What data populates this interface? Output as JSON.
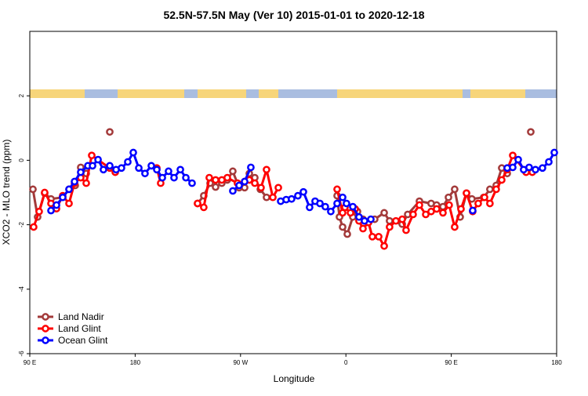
{
  "chart_data": {
    "type": "line",
    "title": "52.5N-57.5N May (Ver 10)   2015-01-01 to 2020-12-18",
    "x_label": "Longitude",
    "y_label": "XCO2 - MLO trend (ppm)",
    "xlim": [
      90,
      540
    ],
    "xticks": [
      {
        "value": 90,
        "label": "90 E"
      },
      180,
      {
        "value": 270,
        "label": "90 W"
      },
      {
        "value": 360,
        "label": "0"
      },
      {
        "value": 450,
        "label": "90 E"
      },
      {
        "value": 540,
        "label": "180"
      }
    ],
    "ylim": [
      -6,
      4
    ],
    "yticks": [
      2,
      0,
      -2,
      -4,
      -6
    ],
    "legend": "lower left",
    "series": [
      {
        "name": "Land Nadir",
        "color": "#a33a3a",
        "x": [
          92.7,
          96.7,
          102.7,
          108.1,
          118.1,
          123.5,
          128.8,
          133.5,
          138.2,
          null,
          158.3,
          null,
          233.3,
          238.6,
          244,
          248.7,
          254,
          258.7,
          263.4,
          268.8,
          273.5,
          277.5,
          282.2,
          286.9,
          292.2,
          null,
          352.5,
          354.5,
          357.2,
          361.2,
          365.9,
          369.9,
          374.6,
          379.3,
          384.6,
          392.7,
          397.3,
          408.1,
          412.8,
          422.8,
          432.8,
          437.5,
          442.9,
          447.6,
          452.9,
          457.6,
          463,
          467.6,
          477.7,
          483,
          488.4,
          493.1,
          497.8,
          null,
          517.9
        ],
        "values": [
          -0.9,
          -1.76,
          -1.02,
          -1.2,
          -1.15,
          -0.9,
          -0.78,
          -0.22,
          -0.41,
          null,
          0.88,
          null,
          -1.34,
          -1.1,
          -0.71,
          -0.83,
          -0.71,
          -0.61,
          -0.34,
          -0.85,
          -0.85,
          -0.41,
          -0.54,
          -0.9,
          -1.15,
          null,
          -1.1,
          -1.76,
          -2.07,
          -2.29,
          -1.76,
          -1.59,
          -1.83,
          -1.93,
          -1.83,
          -1.63,
          -1.88,
          -1.98,
          -1.68,
          -1.27,
          -1.34,
          -1.39,
          -1.44,
          -1.15,
          -0.9,
          -1.76,
          -1.02,
          -1.2,
          -1.15,
          -0.9,
          -0.78,
          -0.24,
          -0.41,
          null,
          0.88
        ]
      },
      {
        "name": "Land Glint",
        "color": "#ff0000",
        "x": [
          93.3,
          98,
          102.7,
          108.1,
          112.8,
          118.1,
          123.5,
          128.2,
          133.5,
          138.2,
          142.9,
          158.3,
          163,
          null,
          198.5,
          201.8,
          null,
          233.3,
          238.6,
          243.3,
          248.7,
          254,
          258.7,
          267.4,
          273.5,
          277.5,
          282.2,
          287.5,
          292.2,
          297.6,
          302.3,
          null,
          352.5,
          357.2,
          359.2,
          363.9,
          367.9,
          371.2,
          374.6,
          379.3,
          382.6,
          388,
          392.7,
          397.3,
          402.7,
          408.1,
          411.4,
          417.4,
          422.8,
          428.2,
          432.8,
          437.5,
          442.9,
          448.2,
          452.9,
          458.3,
          463,
          468.3,
          473,
          478.4,
          483,
          488.4,
          493.1,
          497.8,
          502.5,
          513.9,
          519.2
        ],
        "values": [
          -2.07,
          -1.59,
          -1.0,
          -1.34,
          -1.5,
          -1.1,
          -1.34,
          -0.71,
          -0.54,
          -0.71,
          0.15,
          -0.24,
          -0.37,
          null,
          -0.24,
          -0.71,
          null,
          -1.34,
          -1.46,
          -0.54,
          -0.61,
          -0.61,
          -0.54,
          -0.71,
          -0.66,
          -0.61,
          -0.71,
          -0.85,
          -0.29,
          -1.15,
          -0.85,
          null,
          -0.9,
          -1.63,
          -1.46,
          -1.63,
          -1.51,
          -1.88,
          -2.12,
          -1.93,
          -2.37,
          -2.37,
          -2.66,
          -2.07,
          -1.88,
          -1.83,
          -2.17,
          -1.68,
          -1.39,
          -1.68,
          -1.59,
          -1.51,
          -1.63,
          -1.39,
          -2.07,
          -1.51,
          -1.02,
          -1.59,
          -1.34,
          -1.15,
          -1.34,
          -0.9,
          -0.61,
          -0.29,
          0.15,
          -0.37,
          -0.37
        ]
      },
      {
        "name": "Ocean Glint",
        "color": "#0000ff",
        "x": [
          108.1,
          112.8,
          118.1,
          123.5,
          128.2,
          133.5,
          139.6,
          143.6,
          148.3,
          152.9,
          158.3,
          163.7,
          168.3,
          173.7,
          178.4,
          183.1,
          188.4,
          193.8,
          198.5,
          203.2,
          208.5,
          213.2,
          218.6,
          223.3,
          228.6,
          null,
          263.4,
          268.8,
          273.5,
          278.8,
          null,
          304.3,
          309,
          313.6,
          319,
          323.7,
          329,
          333.7,
          337.8,
          342.4,
          347.1,
          352.5,
          357.2,
          360.5,
          365.9,
          371.2,
          375.9,
          381.3,
          null,
          468.3,
          null,
          497.8,
          502.5,
          507.2,
          511.8,
          516.5,
          521.9,
          527.9,
          533.3,
          538
        ],
        "values": [
          -1.56,
          -1.39,
          -1.15,
          -0.9,
          -0.66,
          -0.37,
          -0.17,
          -0.17,
          0.02,
          -0.29,
          -0.17,
          -0.29,
          -0.24,
          -0.05,
          0.24,
          -0.24,
          -0.41,
          -0.17,
          -0.29,
          -0.54,
          -0.34,
          -0.54,
          -0.29,
          -0.54,
          -0.71,
          null,
          -0.95,
          -0.78,
          -0.66,
          -0.22,
          null,
          -1.27,
          -1.22,
          -1.2,
          -1.1,
          -0.98,
          -1.46,
          -1.27,
          -1.34,
          -1.44,
          -1.59,
          -1.34,
          -1.15,
          -1.34,
          -1.44,
          -1.76,
          -1.88,
          -1.83,
          null,
          -1.56,
          null,
          -0.24,
          -0.22,
          0.02,
          -0.29,
          -0.22,
          -0.29,
          -0.24,
          -0.05,
          0.24
        ]
      }
    ]
  }
}
